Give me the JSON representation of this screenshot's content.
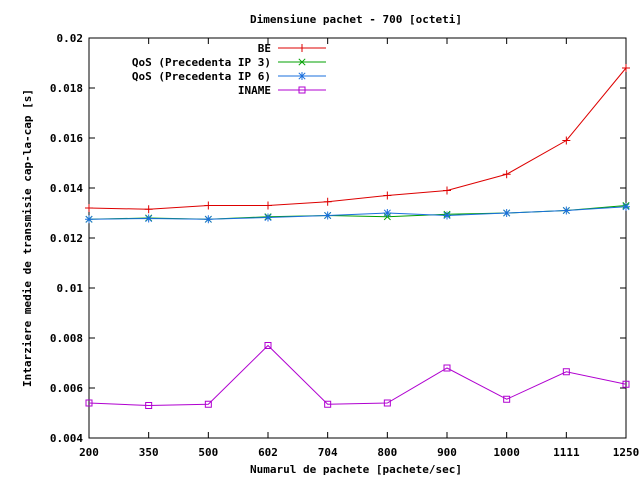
{
  "chart_data": {
    "type": "line",
    "title": "Dimensiune pachet - 700 [octeti]",
    "xlabel": "Numarul de pachete [pachete/sec]",
    "ylabel": "Intarziere medie de transmisie cap-la-cap [s]",
    "categories": [
      "200",
      "350",
      "500",
      "602",
      "704",
      "800",
      "900",
      "1000",
      "1111",
      "1250"
    ],
    "ylim": [
      0.004,
      0.02
    ],
    "yticks": [
      "0.004",
      "0.006",
      "0.008",
      "0.01",
      "0.012",
      "0.014",
      "0.016",
      "0.018",
      "0.02"
    ],
    "legend_position": "top-right",
    "grid": false,
    "series": [
      {
        "name": "BE",
        "color": "#dd0000",
        "marker": "plus",
        "values": [
          0.0132,
          0.01315,
          0.0133,
          0.0133,
          0.01345,
          0.0137,
          0.0139,
          0.01455,
          0.0159,
          0.0188
        ]
      },
      {
        "name": "QoS (Precedenta IP 3)",
        "color": "#00a000",
        "marker": "cross",
        "values": [
          0.01275,
          0.0128,
          0.01275,
          0.01285,
          0.0129,
          0.01285,
          0.01295,
          0.013,
          0.0131,
          0.0133
        ]
      },
      {
        "name": "QoS (Precedenta IP 6)",
        "color": "#1a6fdd",
        "marker": "star",
        "values": [
          0.01275,
          0.01278,
          0.01275,
          0.01282,
          0.0129,
          0.013,
          0.0129,
          0.013,
          0.0131,
          0.01325
        ]
      },
      {
        "name": "INAME",
        "color": "#b000d0",
        "marker": "square",
        "values": [
          0.0054,
          0.0053,
          0.00535,
          0.0077,
          0.00535,
          0.0054,
          0.0068,
          0.00555,
          0.00665,
          0.00615
        ]
      }
    ]
  }
}
